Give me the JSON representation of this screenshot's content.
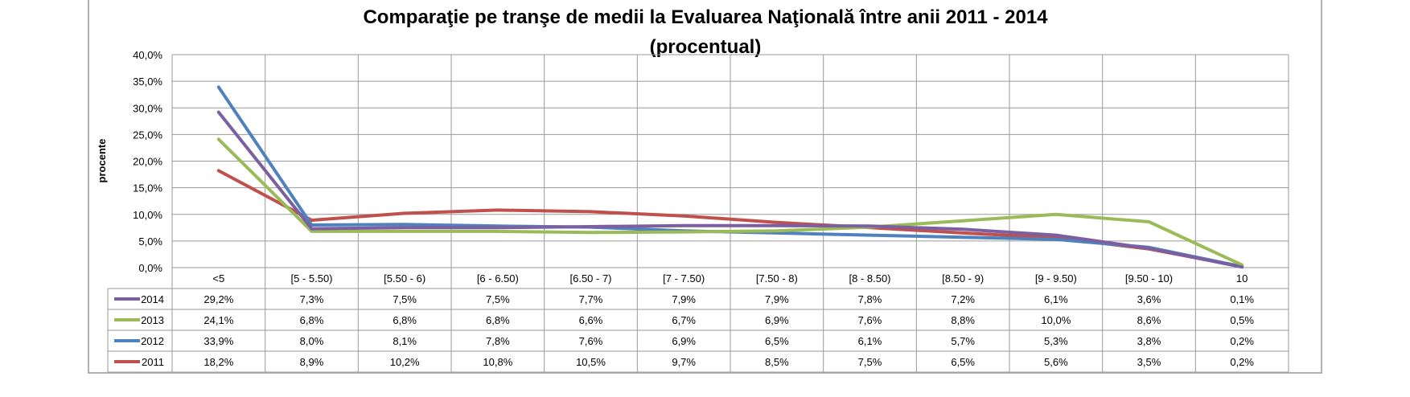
{
  "chart_data": {
    "type": "line",
    "title": "Comparaţie pe tranşe de medii la Evaluarea Naţională între anii 2011 - 2014",
    "subtitle": "(procentual)",
    "ylabel": "procente",
    "xlabel": "",
    "ylim": [
      0,
      40
    ],
    "y_tick_step": 5,
    "y_ticks": [
      "0,0%",
      "5,0%",
      "10,0%",
      "15,0%",
      "20,0%",
      "25,0%",
      "30,0%",
      "35,0%",
      "40,0%"
    ],
    "grid": true,
    "legend": "data-table-left",
    "categories": [
      "<5",
      "[5 - 5.50)",
      "[5.50 - 6)",
      "[6 - 6.50)",
      "[6.50 - 7)",
      "[7 - 7.50)",
      "[7.50 - 8)",
      "[8 - 8.50)",
      "[8.50 - 9)",
      "[9 - 9.50)",
      "[9.50 - 10)",
      "10"
    ],
    "series": [
      {
        "name": "2014",
        "color": "#7b5fa0",
        "values": [
          29.2,
          7.3,
          7.5,
          7.5,
          7.7,
          7.9,
          7.9,
          7.8,
          7.2,
          6.1,
          3.6,
          0.1
        ],
        "labels": [
          "29,2%",
          "7,3%",
          "7,5%",
          "7,5%",
          "7,7%",
          "7,9%",
          "7,9%",
          "7,8%",
          "7,2%",
          "6,1%",
          "3,6%",
          "0,1%"
        ]
      },
      {
        "name": "2013",
        "color": "#9bbb59",
        "values": [
          24.1,
          6.8,
          6.8,
          6.8,
          6.6,
          6.7,
          6.9,
          7.6,
          8.8,
          10.0,
          8.6,
          0.5
        ],
        "labels": [
          "24,1%",
          "6,8%",
          "6,8%",
          "6,8%",
          "6,6%",
          "6,7%",
          "6,9%",
          "7,6%",
          "8,8%",
          "10,0%",
          "8,6%",
          "0,5%"
        ]
      },
      {
        "name": "2012",
        "color": "#4f81bd",
        "values": [
          33.9,
          8.0,
          8.1,
          7.8,
          7.6,
          6.9,
          6.5,
          6.1,
          5.7,
          5.3,
          3.8,
          0.2
        ],
        "labels": [
          "33,9%",
          "8,0%",
          "8,1%",
          "7,8%",
          "7,6%",
          "6,9%",
          "6,5%",
          "6,1%",
          "5,7%",
          "5,3%",
          "3,8%",
          "0,2%"
        ]
      },
      {
        "name": "2011",
        "color": "#c0504d",
        "values": [
          18.2,
          8.9,
          10.2,
          10.8,
          10.5,
          9.7,
          8.5,
          7.5,
          6.5,
          5.6,
          3.5,
          0.2
        ],
        "labels": [
          "18,2%",
          "8,9%",
          "10,2%",
          "10,8%",
          "10,5%",
          "9,7%",
          "8,5%",
          "7,5%",
          "6,5%",
          "5,6%",
          "3,5%",
          "0,2%"
        ]
      }
    ]
  }
}
